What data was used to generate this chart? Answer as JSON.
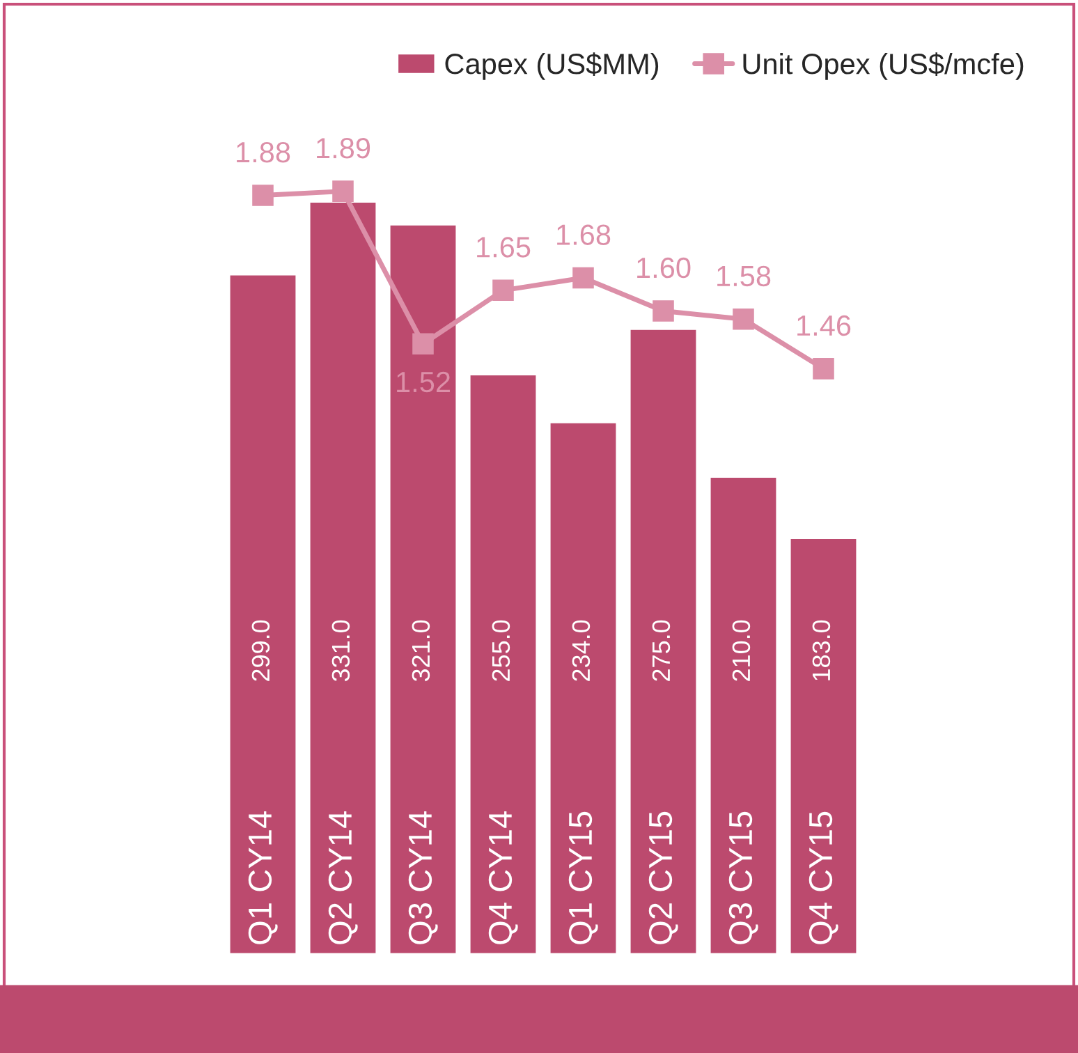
{
  "chart_data": {
    "type": "bar",
    "categories": [
      "Q1 CY14",
      "Q2 CY14",
      "Q3 CY14",
      "Q4 CY14",
      "Q1 CY15",
      "Q2 CY15",
      "Q3 CY15",
      "Q4 CY15"
    ],
    "series": [
      {
        "name": "Capex (US$MM)",
        "color": "#bc4a6e",
        "values": [
          299.0,
          331.0,
          321.0,
          255.0,
          234.0,
          275.0,
          210.0,
          183.0
        ],
        "value_labels": [
          "299.0",
          "331.0",
          "321.0",
          "255.0",
          "234.0",
          "275.0",
          "210.0",
          "183.0"
        ]
      },
      {
        "name": "Unit Opex (US$/mcfe)",
        "type": "line",
        "axis": "y2",
        "color": "#dc8fa8",
        "marker": "square",
        "values": [
          1.88,
          1.89,
          1.52,
          1.65,
          1.68,
          1.6,
          1.58,
          1.46
        ],
        "value_labels": [
          "1.88",
          "1.89",
          "1.52",
          "1.65",
          "1.68",
          "1.60",
          "1.58",
          "1.46"
        ]
      }
    ],
    "tick_labels": false,
    "legend": "top right"
  }
}
